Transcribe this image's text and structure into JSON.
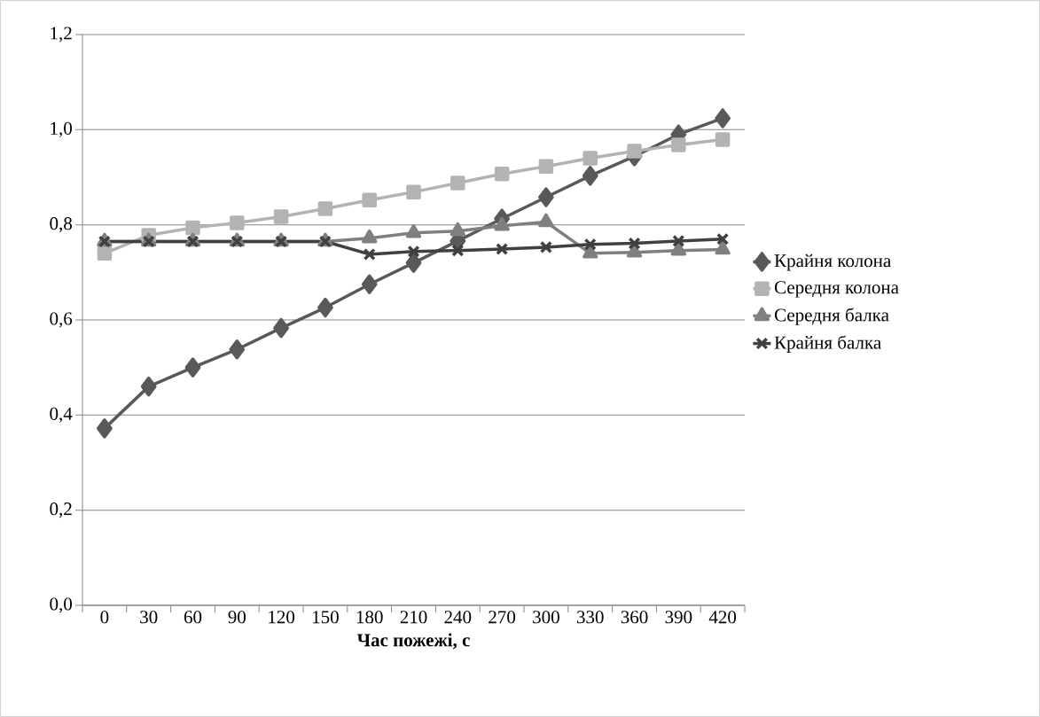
{
  "chart_data": {
    "type": "line",
    "xlabel": "Час пожежі, с",
    "categories": [
      "0",
      "30",
      "60",
      "90",
      "120",
      "150",
      "180",
      "210",
      "240",
      "270",
      "300",
      "330",
      "360",
      "390",
      "420"
    ],
    "ylim": [
      0,
      1.2
    ],
    "yticks": [
      {
        "value": 0,
        "label": "0,0"
      },
      {
        "value": 0.2,
        "label": "0,2"
      },
      {
        "value": 0.4,
        "label": "0,4"
      },
      {
        "value": 0.6,
        "label": "0,6"
      },
      {
        "value": 0.8,
        "label": "0,8"
      },
      {
        "value": 1.0,
        "label": "1,0"
      },
      {
        "value": 1.2,
        "label": "1,2"
      }
    ],
    "grid": "y",
    "legend": "right",
    "line_style": "solid",
    "series": [
      {
        "name": "Крайня колона",
        "color": "#595959",
        "marker": "diamond",
        "values": [
          0.372,
          0.46,
          0.5,
          0.538,
          0.583,
          0.626,
          0.675,
          0.72,
          0.766,
          0.813,
          0.858,
          0.903,
          0.944,
          0.99,
          1.024
        ]
      },
      {
        "name": "Середня колона",
        "color": "#b3b3b3",
        "marker": "square",
        "values": [
          0.74,
          0.778,
          0.794,
          0.804,
          0.817,
          0.834,
          0.852,
          0.869,
          0.888,
          0.907,
          0.923,
          0.94,
          0.955,
          0.968,
          0.979
        ]
      },
      {
        "name": "Середня балка",
        "color": "#7f7f7f",
        "marker": "triangle",
        "values": [
          0.765,
          0.765,
          0.765,
          0.765,
          0.765,
          0.765,
          0.772,
          0.783,
          0.787,
          0.798,
          0.806,
          0.74,
          0.742,
          0.746,
          0.748
        ]
      },
      {
        "name": "Крайня балка",
        "color": "#404040",
        "marker": "cross",
        "values": [
          0.765,
          0.765,
          0.765,
          0.765,
          0.765,
          0.765,
          0.738,
          0.744,
          0.746,
          0.749,
          0.753,
          0.759,
          0.761,
          0.766,
          0.77
        ]
      }
    ]
  }
}
